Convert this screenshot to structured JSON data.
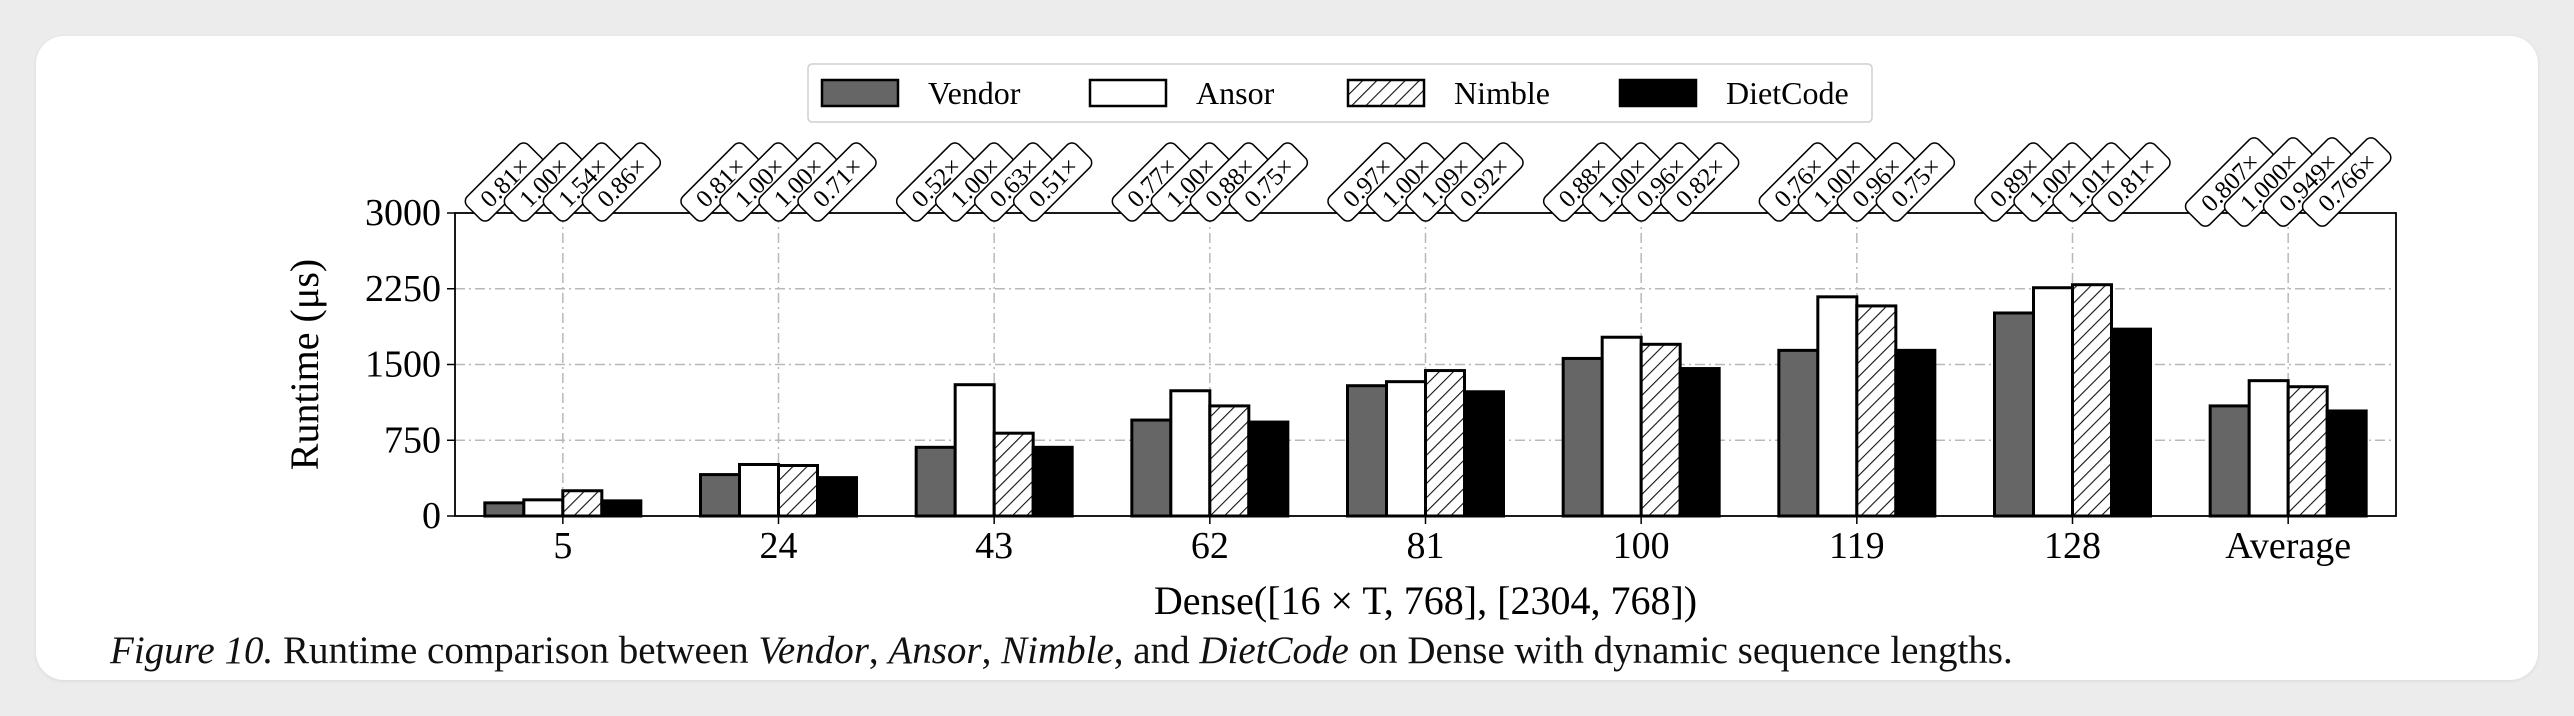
{
  "chart_data": {
    "type": "bar",
    "xlabel": "Dense([16 × T, 768], [2304, 768])",
    "ylabel": "Runtime (μs)",
    "ylim": [
      0,
      3000
    ],
    "yticks": [
      "0",
      "750",
      "1500",
      "2250",
      "3000"
    ],
    "grid": true,
    "legend_position": "top-center",
    "categories": [
      "5",
      "24",
      "43",
      "62",
      "81",
      "100",
      "119",
      "128",
      "Average"
    ],
    "series": [
      {
        "name": "Vendor",
        "fill": "#666666",
        "pattern": "solid",
        "values": [
          130,
          410,
          680,
          950,
          1290,
          1560,
          1640,
          2010,
          1090
        ],
        "ratios": [
          "0.81",
          "0.81",
          "0.52",
          "0.77",
          "0.97",
          "0.88",
          "0.76",
          "0.89",
          "0.807"
        ]
      },
      {
        "name": "Ansor",
        "fill": "#ffffff",
        "pattern": "solid",
        "values": [
          160,
          510,
          1300,
          1240,
          1330,
          1770,
          2170,
          2260,
          1340
        ],
        "ratios": [
          "1.00",
          "1.00",
          "1.00",
          "1.00",
          "1.00",
          "1.00",
          "1.00",
          "1.00",
          "1.000"
        ]
      },
      {
        "name": "Nimble",
        "fill": "#ffffff",
        "pattern": "hatch",
        "values": [
          250,
          500,
          820,
          1090,
          1440,
          1700,
          2080,
          2290,
          1280
        ],
        "ratios": [
          "1.54",
          "1.00",
          "0.63",
          "0.88",
          "1.09",
          "0.96",
          "0.96",
          "1.01",
          "0.949"
        ]
      },
      {
        "name": "DietCode",
        "fill": "#000000",
        "pattern": "solid",
        "values": [
          150,
          380,
          680,
          930,
          1230,
          1460,
          1640,
          1850,
          1040
        ],
        "ratios": [
          "0.86",
          "0.71",
          "0.51",
          "0.75",
          "0.92",
          "0.82",
          "0.75",
          "0.81",
          "0.766"
        ]
      }
    ],
    "ratio_suffix": "×"
  },
  "caption": {
    "figure": "Figure 10.",
    "text1": " Runtime comparison between ",
    "vendor": "Vendor",
    "comma1": ", ",
    "ansor": "Ansor",
    "comma2": ", ",
    "nimble": "Nimble",
    "and": ", and ",
    "dietcode": "DietCode",
    "text2": " on Dense with dynamic sequence lengths."
  }
}
